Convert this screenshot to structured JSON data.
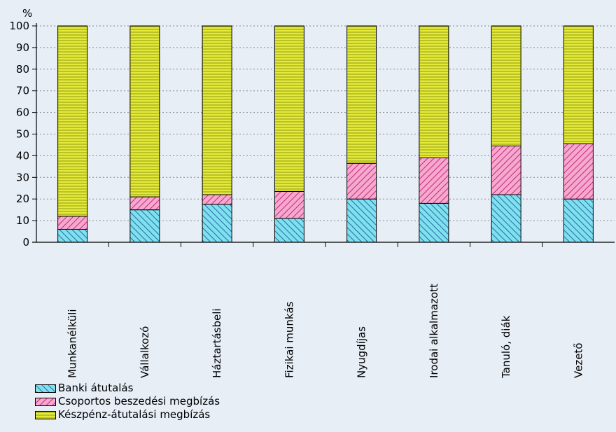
{
  "chart_data": {
    "type": "bar",
    "stacked": true,
    "ylabel": "%",
    "ylim": [
      0,
      100
    ],
    "yticks": [
      0,
      10,
      20,
      30,
      40,
      50,
      60,
      70,
      80,
      90,
      100
    ],
    "grid": true,
    "legend_position": "bottom-left",
    "categories": [
      "Munkanélküli",
      "Vállalkozó",
      "Háztartásbeli",
      "Fizikai munkás",
      "Nyugdíjas",
      "Irodai alkalmazott",
      "Tanuló, diák",
      "Vezető"
    ],
    "series": [
      {
        "name": "Banki átutalás",
        "color": "#7fe0f0",
        "values": [
          6,
          15,
          17.5,
          11,
          20,
          18,
          22,
          20
        ]
      },
      {
        "name": "Csoportos beszedési megbízás",
        "color": "#f7a8cf",
        "values": [
          6,
          6,
          4.5,
          12.5,
          16.5,
          21,
          22.5,
          25.5
        ]
      },
      {
        "name": "Készpénz-átutalási megbízás",
        "color": "#e5ea3a",
        "values": [
          88,
          79,
          78,
          76.5,
          63.5,
          61,
          55.5,
          54.5
        ]
      }
    ]
  }
}
